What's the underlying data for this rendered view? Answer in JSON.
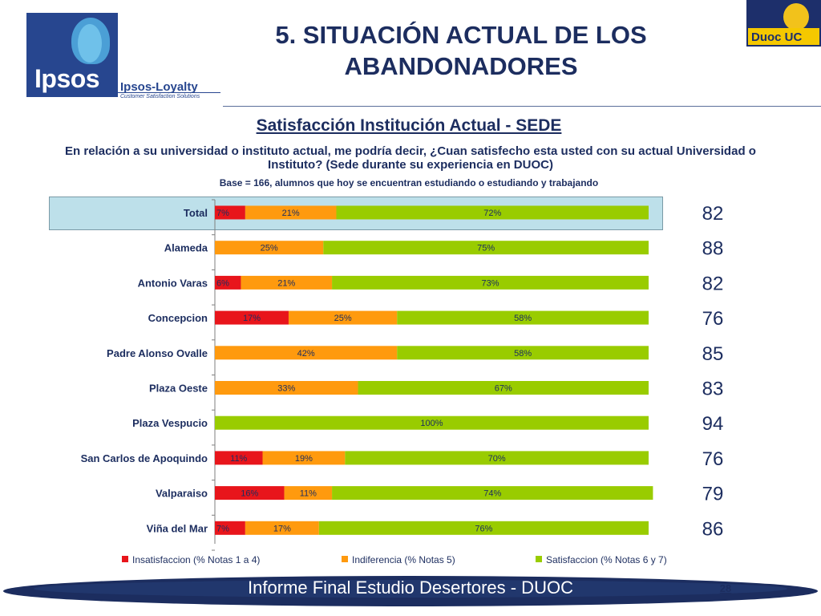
{
  "header": {
    "title": "5. SITUACIÓN ACTUAL DE LOS ABANDONADORES",
    "subtitle": "Satisfacción Institución Actual - SEDE",
    "question": "En relación a su universidad o instituto actual, me podría decir, ¿Cuan satisfecho esta usted con su actual Universidad o Instituto? (Sede durante su experiencia en DUOC)",
    "base": "Base = 166, alumnos que hoy se encuentran estudiando o estudiando y trabajando"
  },
  "logos": {
    "ipsos_word": "Ipsos",
    "ipsos_loyalty": "Ipsos-Loyalty",
    "ipsos_tagline": "Customer Satisfaction Solutions",
    "duoc_text": "Duoc UC"
  },
  "footer": {
    "text": "Informe Final Estudio Desertores - DUOC",
    "page": "28"
  },
  "colors": {
    "insatisfaccion": "#e8151b",
    "indiferencia": "#ff9a0e",
    "satisfaccion": "#99cc00",
    "navy": "#1c2d5f",
    "highlight": "#bde0ea"
  },
  "chart_data": {
    "type": "bar",
    "orientation": "horizontal",
    "stacked": true,
    "categories": [
      "Total",
      "Alameda",
      "Antonio Varas",
      "Concepcion",
      "Padre Alonso Ovalle",
      "Plaza Oeste",
      "Plaza Vespucio",
      "San Carlos de Apoquindo",
      "Valparaiso",
      "Viña del Mar"
    ],
    "series": [
      {
        "name": "Insatisfaccion (% Notas 1 a 4)",
        "values": [
          7,
          0,
          6,
          17,
          0,
          0,
          0,
          11,
          16,
          7
        ]
      },
      {
        "name": "Indiferencia (% Notas 5)",
        "values": [
          21,
          25,
          21,
          25,
          42,
          33,
          0,
          19,
          11,
          17
        ]
      },
      {
        "name": "Satisfaccion (% Notas 6 y 7)",
        "values": [
          72,
          75,
          73,
          58,
          58,
          67,
          100,
          70,
          74,
          76
        ]
      }
    ],
    "labels": [
      [
        "7%",
        "",
        "6%",
        "17%",
        "",
        "",
        "",
        "11%",
        "16%",
        "7%"
      ],
      [
        "21%",
        "25%",
        "21%",
        "25%",
        "42%",
        "33%",
        "",
        "19%",
        "11%",
        "17%"
      ],
      [
        "72%",
        "75%",
        "73%",
        "58%",
        "58%",
        "67%",
        "100%",
        "70%",
        "74%",
        "76%"
      ]
    ],
    "scores": [
      "82",
      "88",
      "82",
      "76",
      "85",
      "83",
      "94",
      "76",
      "79",
      "86"
    ],
    "highlighted_category": "Total",
    "xlim": [
      0,
      100
    ],
    "legend_position": "bottom"
  }
}
